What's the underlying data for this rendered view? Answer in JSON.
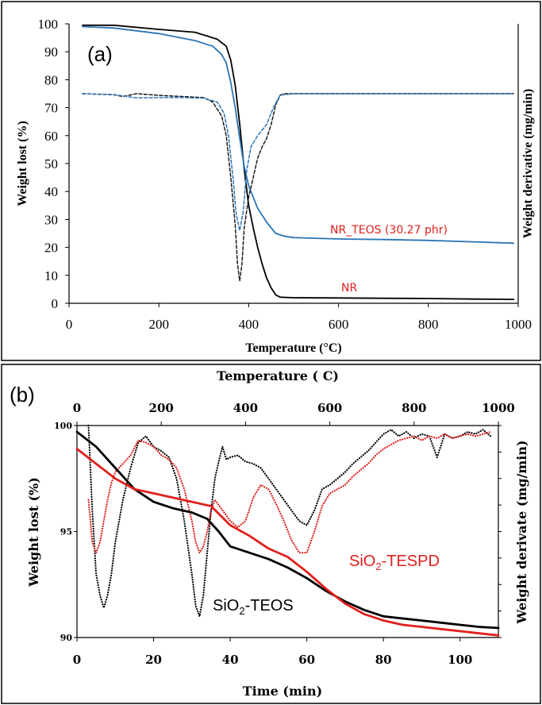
{
  "chart_data": [
    {
      "panel": "(a)",
      "type": "line",
      "xlabel": "Temperature (°C)",
      "ylabel": "Weight lost (%)",
      "y2label": "Weight derivative (mg/min)",
      "xlim": [
        0,
        1000
      ],
      "ylim": [
        0,
        100
      ],
      "xticks": [
        0,
        200,
        400,
        600,
        800,
        1000
      ],
      "yticks": [
        0,
        10,
        20,
        30,
        40,
        50,
        60,
        70,
        80,
        90,
        100
      ],
      "annotations": [
        {
          "text": "NR_TEOS (30.27 phr)",
          "color": "#e0201c"
        },
        {
          "text": "NR",
          "color": "#e0201c"
        }
      ],
      "series": [
        {
          "kind": "weight",
          "color": "#000000",
          "dash": "solid",
          "x": [
            30,
            100,
            200,
            280,
            330,
            350,
            360,
            370,
            380,
            390,
            400,
            410,
            420,
            430,
            440,
            450,
            460,
            470,
            500,
            600,
            700,
            800,
            900,
            990
          ],
          "y": [
            99.5,
            99.5,
            98.0,
            97.0,
            94.5,
            92.0,
            87.0,
            78.0,
            64.0,
            48.0,
            35.0,
            27.0,
            20.0,
            14.0,
            9.0,
            5.5,
            3.0,
            2.2,
            2.0,
            1.9,
            1.8,
            1.7,
            1.5,
            1.4
          ]
        },
        {
          "kind": "weight",
          "color": "#2a74b6",
          "dash": "solid",
          "x": [
            30,
            100,
            200,
            280,
            320,
            340,
            350,
            360,
            370,
            380,
            390,
            400,
            420,
            440,
            460,
            480,
            500,
            600,
            700,
            800,
            900,
            990
          ],
          "y": [
            99.0,
            98.5,
            96.5,
            94.0,
            92.0,
            89.0,
            86.0,
            79.0,
            70.0,
            59.0,
            49.0,
            42.0,
            34.0,
            29.0,
            25.0,
            24.0,
            23.5,
            23.0,
            22.8,
            22.5,
            22.0,
            21.5
          ]
        },
        {
          "kind": "derivative",
          "color": "#1a1a1a",
          "dash": "dashed",
          "x": [
            30,
            100,
            120,
            150,
            200,
            250,
            300,
            320,
            340,
            350,
            360,
            370,
            375,
            380,
            385,
            390,
            400,
            410,
            420,
            430,
            440,
            450,
            460,
            470,
            480,
            500,
            600,
            700,
            800,
            900,
            990
          ],
          "y": [
            75.0,
            74.6,
            74.0,
            75.0,
            74.4,
            74.0,
            73.6,
            72.0,
            67.0,
            60.0,
            45.0,
            28.0,
            14.0,
            8.0,
            14.0,
            27.0,
            38.0,
            45.0,
            52.0,
            56.0,
            59.0,
            64.0,
            71.0,
            74.5,
            75.0,
            75.0,
            75.0,
            75.0,
            75.0,
            75.0,
            75.0
          ]
        },
        {
          "kind": "derivative",
          "color": "#2a74b6",
          "dash": "dashed",
          "x": [
            30,
            100,
            150,
            200,
            250,
            300,
            330,
            345,
            355,
            365,
            372,
            380,
            388,
            395,
            405,
            420,
            440,
            455,
            470,
            500,
            600,
            700,
            800,
            900,
            990
          ],
          "y": [
            75.0,
            74.7,
            73.5,
            73.6,
            73.6,
            73.4,
            72.0,
            68.0,
            60.0,
            45.0,
            32.0,
            26.0,
            33.0,
            47.0,
            56.0,
            60.0,
            64.0,
            70.0,
            74.5,
            75.0,
            75.0,
            75.0,
            75.0,
            75.0,
            75.0
          ]
        }
      ]
    },
    {
      "panel": "(b)",
      "type": "line",
      "xlabel": "Time (min)",
      "x2label": "Temperature ( C)",
      "ylabel": "Weight lost (%)",
      "y2label": "Weight derivate (mg/min)",
      "xlim": [
        0,
        110
      ],
      "x2lim": [
        0,
        1000
      ],
      "ylim": [
        90,
        100
      ],
      "xticks": [
        0,
        20,
        40,
        60,
        80,
        100
      ],
      "x2ticks": [
        0,
        200,
        400,
        600,
        800,
        1000
      ],
      "yticks": [
        90,
        95,
        100
      ],
      "annotations": [
        {
          "text": "SiO",
          "sub": "2",
          "rest": "-TESPD",
          "color": "#e0201c"
        },
        {
          "text": "SiO",
          "sub": "2",
          "rest": "-TEOS",
          "color": "#000000"
        }
      ],
      "series": [
        {
          "kind": "weight",
          "color": "#000000",
          "dash": "solid",
          "x": [
            0,
            5,
            10,
            15,
            20,
            25,
            30,
            34,
            37,
            40,
            45,
            50,
            55,
            60,
            65,
            70,
            75,
            80,
            85,
            90,
            95,
            100,
            105,
            110
          ],
          "y": [
            99.7,
            99.0,
            98.0,
            97.0,
            96.4,
            96.1,
            95.9,
            95.6,
            95.0,
            94.3,
            94.0,
            93.7,
            93.3,
            92.8,
            92.2,
            91.7,
            91.3,
            91.0,
            90.9,
            90.8,
            90.7,
            90.6,
            90.5,
            90.45
          ]
        },
        {
          "kind": "weight",
          "color": "#e0201c",
          "dash": "solid",
          "x": [
            0,
            5,
            10,
            15,
            20,
            25,
            30,
            35,
            40,
            45,
            50,
            55,
            60,
            65,
            70,
            75,
            80,
            85,
            90,
            95,
            100,
            105,
            110
          ],
          "y": [
            98.9,
            98.2,
            97.5,
            97.0,
            96.8,
            96.6,
            96.4,
            96.2,
            95.3,
            94.8,
            94.2,
            93.8,
            93.1,
            92.3,
            91.6,
            91.1,
            90.8,
            90.6,
            90.5,
            90.4,
            90.3,
            90.2,
            90.1
          ]
        },
        {
          "kind": "derivative",
          "color": "#000000",
          "dash": "dotted",
          "x": [
            3,
            4,
            5,
            6,
            7,
            8,
            9,
            10,
            12,
            14,
            16,
            18,
            20,
            22,
            24,
            26,
            28,
            30,
            31,
            32,
            33,
            34,
            35,
            36,
            37,
            38,
            39,
            40,
            42,
            44,
            46,
            48,
            50,
            52,
            54,
            56,
            58,
            60,
            62,
            64,
            66,
            68,
            70,
            72,
            74,
            76,
            78,
            80,
            82,
            84,
            86,
            88,
            90,
            92,
            94,
            96,
            98,
            100,
            102,
            104,
            106,
            108
          ],
          "y": [
            100.0,
            96.0,
            93.0,
            92.0,
            91.4,
            92.0,
            93.0,
            94.5,
            96.5,
            98.0,
            99.2,
            99.5,
            99.0,
            98.8,
            98.5,
            97.5,
            95.5,
            93.0,
            91.5,
            91.0,
            92.0,
            94.0,
            96.0,
            97.5,
            98.3,
            99.0,
            98.4,
            98.5,
            98.6,
            98.3,
            98.2,
            98.0,
            97.5,
            97.0,
            96.5,
            96.0,
            95.5,
            95.3,
            96.0,
            97.0,
            97.2,
            97.5,
            97.8,
            98.2,
            98.5,
            98.8,
            99.2,
            99.6,
            99.8,
            99.5,
            99.7,
            99.4,
            99.6,
            99.5,
            98.5,
            99.6,
            99.4,
            99.5,
            99.7,
            99.6,
            99.8,
            99.5
          ]
        },
        {
          "kind": "derivative",
          "color": "#e0201c",
          "dash": "dotted",
          "x": [
            3,
            4,
            5,
            6,
            7,
            8,
            9,
            10,
            12,
            14,
            16,
            18,
            20,
            22,
            24,
            26,
            28,
            30,
            31,
            32,
            33,
            34,
            35,
            36,
            38,
            40,
            42,
            44,
            46,
            48,
            50,
            52,
            54,
            56,
            58,
            60,
            62,
            64,
            66,
            68,
            70,
            72,
            74,
            76,
            78,
            80,
            82,
            84,
            86,
            88,
            90,
            92,
            94,
            96,
            98,
            100,
            102,
            104,
            106,
            108
          ],
          "y": [
            96.5,
            94.5,
            94.0,
            94.5,
            95.5,
            96.5,
            97.3,
            97.8,
            98.2,
            98.6,
            99.3,
            99.2,
            99.0,
            98.6,
            98.4,
            98.0,
            97.0,
            95.5,
            94.5,
            94.0,
            94.3,
            95.0,
            96.0,
            96.5,
            96.0,
            95.5,
            95.2,
            95.5,
            96.6,
            97.2,
            97.0,
            96.3,
            95.5,
            94.6,
            94.0,
            94.0,
            95.0,
            96.2,
            96.8,
            97.0,
            97.2,
            97.6,
            97.9,
            98.2,
            98.6,
            98.9,
            99.1,
            99.3,
            99.4,
            99.5,
            99.3,
            99.5,
            99.4,
            99.6,
            99.4,
            99.5,
            99.6,
            99.5,
            99.6,
            99.7
          ]
        }
      ]
    }
  ]
}
